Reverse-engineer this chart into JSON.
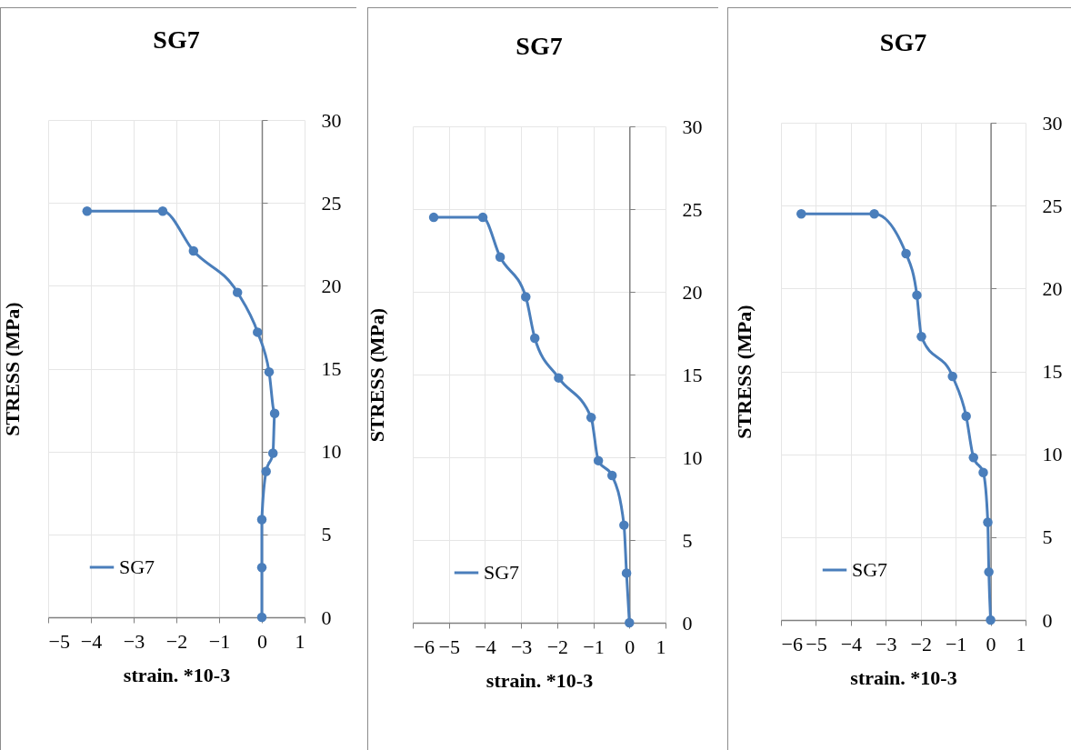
{
  "chart_data": [
    {
      "type": "line",
      "title": "SG7",
      "xlabel": "strain. *10-3",
      "ylabel": "STRESS (MPa)",
      "xlim": [
        -5,
        1
      ],
      "xticks": [
        -5,
        -4,
        -3,
        -2,
        -1,
        0,
        1
      ],
      "ylim": [
        0,
        30
      ],
      "yticks": [
        0,
        5,
        10,
        15,
        20,
        25,
        30
      ],
      "grid": true,
      "legend": "bottom left",
      "marker": "circle",
      "series": [
        {
          "name": "SG7",
          "color": "#4a7ebb",
          "x": [
            -4.09,
            -2.32,
            -1.6,
            -0.57,
            -0.1,
            0.17,
            0.3,
            0.26,
            0.1,
            0,
            0,
            0
          ],
          "values": [
            24.5,
            24.5,
            22.1,
            19.6,
            17.2,
            14.8,
            12.3,
            9.9,
            8.8,
            5.9,
            3.0,
            0
          ]
        }
      ]
    },
    {
      "type": "line",
      "title": "SG7",
      "xlabel": "strain. *10-3",
      "ylabel": "STRESS (MPa)",
      "xlim": [
        -6,
        1
      ],
      "xticks": [
        -6,
        -5,
        -4,
        -3,
        -2,
        -1,
        0,
        1
      ],
      "ylim": [
        0,
        30
      ],
      "yticks": [
        0,
        5,
        10,
        15,
        20,
        25,
        30
      ],
      "grid": true,
      "legend": "bottom left",
      "marker": "circle",
      "series": [
        {
          "name": "SG7",
          "color": "#4a7ebb",
          "x": [
            -5.42,
            -4.06,
            -3.58,
            -2.87,
            -2.62,
            -1.96,
            -1.06,
            -0.86,
            -0.48,
            -0.15,
            -0.08,
            0
          ],
          "values": [
            24.5,
            24.5,
            22.1,
            19.7,
            17.2,
            14.8,
            12.4,
            9.8,
            8.9,
            5.9,
            3.0,
            0
          ]
        }
      ]
    },
    {
      "type": "line",
      "title": "SG7",
      "xlabel": "strain. *10-3",
      "ylabel": "STRESS (MPa)",
      "xlim": [
        -6,
        1
      ],
      "xticks": [
        -6,
        -5,
        -4,
        -3,
        -2,
        -1,
        0,
        1
      ],
      "ylim": [
        0,
        30
      ],
      "yticks": [
        0,
        5,
        10,
        15,
        20,
        25,
        30
      ],
      "grid": true,
      "legend": "bottom left",
      "marker": "circle",
      "series": [
        {
          "name": "SG7",
          "color": "#4a7ebb",
          "x": [
            -5.42,
            -3.33,
            -2.42,
            -2.11,
            -1.98,
            -1.09,
            -0.7,
            -0.49,
            -0.21,
            -0.08,
            -0.05,
            0
          ],
          "values": [
            24.5,
            24.5,
            22.1,
            19.6,
            17.1,
            14.7,
            12.3,
            9.8,
            8.9,
            5.9,
            2.9,
            0
          ]
        }
      ]
    }
  ]
}
